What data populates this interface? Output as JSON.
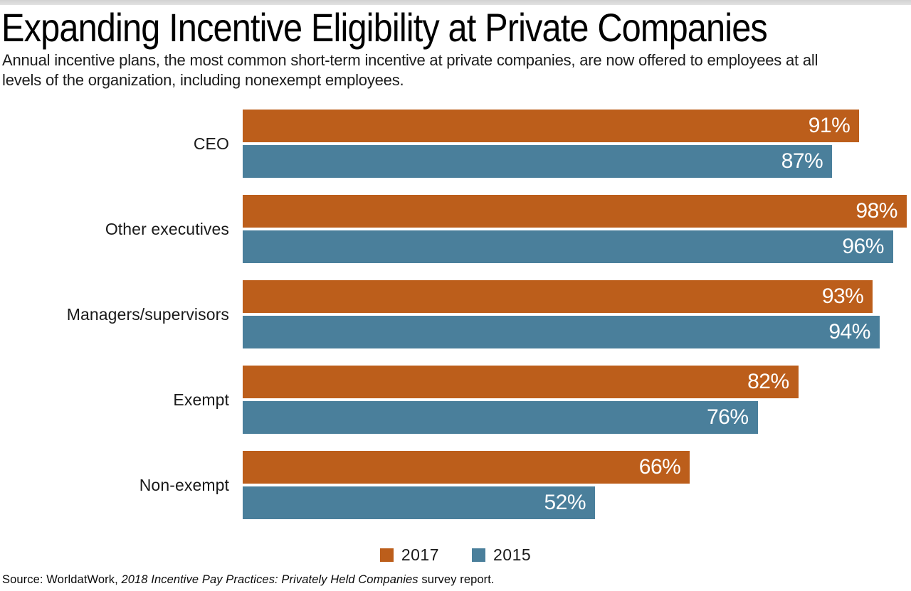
{
  "header": {
    "title": "Expanding Incentive Eligibility at Private Companies",
    "subtitle_line1": "Annual incentive plans, the most common short-term incentive at private companies, are now offered to employees at all",
    "subtitle_line2": "levels of the organization, including nonexempt employees."
  },
  "chart_data": {
    "type": "bar",
    "orientation": "horizontal",
    "title": "Expanding Incentive Eligibility at Private Companies",
    "categories": [
      "CEO",
      "Other executives",
      "Managers/supervisors",
      "Exempt",
      "Non-exempt"
    ],
    "series": [
      {
        "name": "2017",
        "color": "#bc5e1b",
        "values": [
          91,
          98,
          93,
          82,
          66
        ],
        "labels": [
          "91%",
          "98%",
          "93%",
          "82%",
          "66%"
        ]
      },
      {
        "name": "2015",
        "color": "#4a7f9b",
        "values": [
          87,
          96,
          94,
          76,
          52
        ],
        "labels": [
          "87%",
          "96%",
          "94%",
          "76%",
          "52%"
        ]
      }
    ],
    "xlim": [
      0,
      100
    ],
    "value_label_position": "inside-end",
    "grid": false,
    "legend_position": "bottom-center"
  },
  "source": {
    "prefix": "Source: WorldatWork, ",
    "italic_title": "2018 Incentive Pay Practices: Privately Held Companies",
    "suffix": " survey report."
  }
}
